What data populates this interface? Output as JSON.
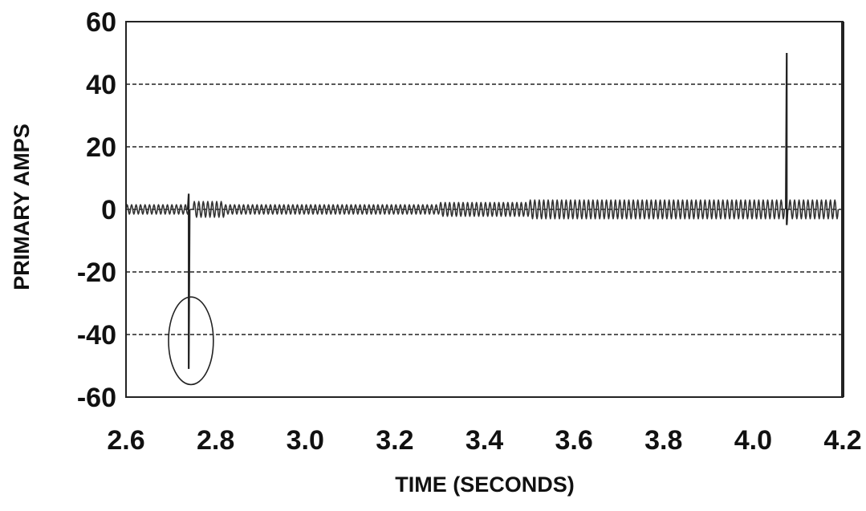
{
  "chart_data": {
    "type": "line",
    "title": "",
    "xlabel": "TIME (SECONDS)",
    "ylabel": "PRIMARY AMPS",
    "xlim": [
      2.6,
      4.2
    ],
    "ylim": [
      -60,
      60
    ],
    "x_ticks": [
      "2.6",
      "2.8",
      "3.0",
      "3.2",
      "3.4",
      "3.6",
      "3.8",
      "4.0",
      "4.2"
    ],
    "y_ticks": [
      "60",
      "40",
      "20",
      "0",
      "-20",
      "-40",
      "-60"
    ],
    "grid": "horizontal-dashed",
    "legend": "none",
    "series": [
      {
        "style": "oscillating-trace",
        "baseline": 0,
        "segments": [
          {
            "x_start": 2.6,
            "x_end": 2.74,
            "amplitude": 1.5
          },
          {
            "x_start": 2.75,
            "x_end": 2.82,
            "amplitude": 2.5
          },
          {
            "x_start": 2.82,
            "x_end": 3.3,
            "amplitude": 1.5
          },
          {
            "x_start": 3.3,
            "x_end": 3.5,
            "amplitude": 2.2
          },
          {
            "x_start": 3.5,
            "x_end": 4.07,
            "amplitude": 3.0
          },
          {
            "x_start": 4.08,
            "x_end": 4.19,
            "amplitude": 3.0
          }
        ],
        "spikes": [
          {
            "x": 2.74,
            "y_min": -51,
            "y_max": 5
          },
          {
            "x": 4.075,
            "y_min": -5,
            "y_max": 50
          }
        ]
      }
    ],
    "annotations": [
      {
        "type": "ellipse",
        "center": [
          2.745,
          -42
        ],
        "radius": [
          0.05,
          14
        ]
      }
    ]
  }
}
